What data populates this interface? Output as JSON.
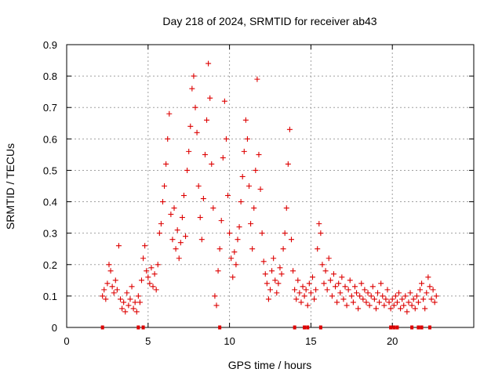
{
  "chart_data": {
    "type": "scatter",
    "title": "Day 218 of 2024, SRMTID for receiver ab43",
    "xlabel": "GPS time / hours",
    "ylabel": "SRMTID / TECUs",
    "xlim": [
      0,
      25
    ],
    "ylim": [
      0,
      0.9
    ],
    "xticks": [
      0,
      5,
      10,
      15,
      20
    ],
    "yticks": [
      0,
      0.1,
      0.2,
      0.3,
      0.4,
      0.5,
      0.6,
      0.7,
      0.8,
      0.9
    ],
    "grid": true,
    "marker": "plus",
    "color": "#dd0000",
    "series": [
      {
        "name": "SRMTID",
        "points": [
          [
            2.2,
            0.1
          ],
          [
            2.3,
            0.12
          ],
          [
            2.4,
            0.09
          ],
          [
            2.5,
            0.14
          ],
          [
            2.6,
            0.2
          ],
          [
            2.7,
            0.18
          ],
          [
            2.8,
            0.13
          ],
          [
            2.9,
            0.11
          ],
          [
            3.0,
            0.15
          ],
          [
            3.1,
            0.12
          ],
          [
            3.2,
            0.26
          ],
          [
            3.3,
            0.09
          ],
          [
            3.4,
            0.06
          ],
          [
            3.5,
            0.08
          ],
          [
            3.6,
            0.05
          ],
          [
            3.7,
            0.11
          ],
          [
            3.8,
            0.07
          ],
          [
            3.9,
            0.09
          ],
          [
            4.0,
            0.13
          ],
          [
            4.1,
            0.06
          ],
          [
            4.2,
            0.08
          ],
          [
            4.3,
            0.05
          ],
          [
            4.4,
            0.1
          ],
          [
            4.5,
            0.08
          ],
          [
            4.6,
            0.15
          ],
          [
            4.7,
            0.22
          ],
          [
            4.8,
            0.26
          ],
          [
            4.9,
            0.18
          ],
          [
            5.0,
            0.16
          ],
          [
            5.1,
            0.14
          ],
          [
            5.2,
            0.19
          ],
          [
            5.3,
            0.13
          ],
          [
            5.4,
            0.17
          ],
          [
            5.5,
            0.12
          ],
          [
            5.6,
            0.2
          ],
          [
            5.7,
            0.3
          ],
          [
            5.8,
            0.33
          ],
          [
            5.9,
            0.4
          ],
          [
            6.0,
            0.45
          ],
          [
            6.1,
            0.52
          ],
          [
            6.2,
            0.6
          ],
          [
            6.3,
            0.68
          ],
          [
            6.4,
            0.36
          ],
          [
            6.5,
            0.28
          ],
          [
            6.6,
            0.38
          ],
          [
            6.7,
            0.25
          ],
          [
            6.8,
            0.31
          ],
          [
            6.9,
            0.22
          ],
          [
            7.0,
            0.27
          ],
          [
            7.1,
            0.35
          ],
          [
            7.2,
            0.42
          ],
          [
            7.3,
            0.29
          ],
          [
            7.4,
            0.5
          ],
          [
            7.5,
            0.56
          ],
          [
            7.6,
            0.64
          ],
          [
            7.7,
            0.76
          ],
          [
            7.8,
            0.8
          ],
          [
            7.9,
            0.7
          ],
          [
            8.0,
            0.62
          ],
          [
            8.1,
            0.45
          ],
          [
            8.2,
            0.35
          ],
          [
            8.3,
            0.28
          ],
          [
            8.4,
            0.41
          ],
          [
            8.5,
            0.55
          ],
          [
            8.6,
            0.66
          ],
          [
            8.7,
            0.84
          ],
          [
            8.8,
            0.73
          ],
          [
            8.9,
            0.52
          ],
          [
            9.0,
            0.38
          ],
          [
            9.1,
            0.1
          ],
          [
            9.2,
            0.07
          ],
          [
            9.3,
            0.18
          ],
          [
            9.4,
            0.25
          ],
          [
            9.5,
            0.34
          ],
          [
            9.6,
            0.54
          ],
          [
            9.7,
            0.72
          ],
          [
            9.8,
            0.6
          ],
          [
            9.9,
            0.42
          ],
          [
            10.0,
            0.3
          ],
          [
            10.1,
            0.22
          ],
          [
            10.2,
            0.16
          ],
          [
            10.3,
            0.24
          ],
          [
            10.4,
            0.2
          ],
          [
            10.5,
            0.28
          ],
          [
            10.6,
            0.32
          ],
          [
            10.7,
            0.4
          ],
          [
            10.8,
            0.48
          ],
          [
            10.9,
            0.56
          ],
          [
            11.0,
            0.66
          ],
          [
            11.1,
            0.6
          ],
          [
            11.2,
            0.45
          ],
          [
            11.3,
            0.33
          ],
          [
            11.4,
            0.25
          ],
          [
            11.5,
            0.38
          ],
          [
            11.6,
            0.5
          ],
          [
            11.7,
            0.79
          ],
          [
            11.8,
            0.55
          ],
          [
            11.9,
            0.44
          ],
          [
            12.0,
            0.3
          ],
          [
            12.1,
            0.21
          ],
          [
            12.2,
            0.17
          ],
          [
            12.3,
            0.14
          ],
          [
            12.4,
            0.09
          ],
          [
            12.5,
            0.12
          ],
          [
            12.6,
            0.18
          ],
          [
            12.7,
            0.22
          ],
          [
            12.8,
            0.15
          ],
          [
            12.9,
            0.11
          ],
          [
            13.0,
            0.14
          ],
          [
            13.1,
            0.19
          ],
          [
            13.2,
            0.17
          ],
          [
            13.3,
            0.25
          ],
          [
            13.4,
            0.3
          ],
          [
            13.5,
            0.38
          ],
          [
            13.6,
            0.52
          ],
          [
            13.7,
            0.63
          ],
          [
            13.8,
            0.28
          ],
          [
            13.9,
            0.18
          ],
          [
            14.0,
            0.12
          ],
          [
            14.1,
            0.09
          ],
          [
            14.2,
            0.15
          ],
          [
            14.3,
            0.11
          ],
          [
            14.4,
            0.08
          ],
          [
            14.5,
            0.13
          ],
          [
            14.6,
            0.1
          ],
          [
            14.7,
            0.12
          ],
          [
            14.8,
            0.07
          ],
          [
            14.9,
            0.14
          ],
          [
            15.0,
            0.11
          ],
          [
            15.1,
            0.16
          ],
          [
            15.2,
            0.09
          ],
          [
            15.3,
            0.12
          ],
          [
            15.4,
            0.25
          ],
          [
            15.5,
            0.33
          ],
          [
            15.6,
            0.3
          ],
          [
            15.7,
            0.2
          ],
          [
            15.8,
            0.14
          ],
          [
            15.9,
            0.18
          ],
          [
            16.0,
            0.12
          ],
          [
            16.1,
            0.22
          ],
          [
            16.2,
            0.15
          ],
          [
            16.3,
            0.1
          ],
          [
            16.4,
            0.17
          ],
          [
            16.5,
            0.13
          ],
          [
            16.6,
            0.08
          ],
          [
            16.7,
            0.14
          ],
          [
            16.8,
            0.11
          ],
          [
            16.9,
            0.16
          ],
          [
            17.0,
            0.09
          ],
          [
            17.1,
            0.13
          ],
          [
            17.2,
            0.07
          ],
          [
            17.3,
            0.12
          ],
          [
            17.4,
            0.15
          ],
          [
            17.5,
            0.1
          ],
          [
            17.6,
            0.08
          ],
          [
            17.7,
            0.13
          ],
          [
            17.8,
            0.11
          ],
          [
            17.9,
            0.06
          ],
          [
            18.0,
            0.1
          ],
          [
            18.1,
            0.14
          ],
          [
            18.2,
            0.09
          ],
          [
            18.3,
            0.12
          ],
          [
            18.4,
            0.08
          ],
          [
            18.5,
            0.11
          ],
          [
            18.6,
            0.07
          ],
          [
            18.7,
            0.1
          ],
          [
            18.8,
            0.13
          ],
          [
            18.9,
            0.09
          ],
          [
            19.0,
            0.06
          ],
          [
            19.1,
            0.11
          ],
          [
            19.2,
            0.08
          ],
          [
            19.3,
            0.14
          ],
          [
            19.4,
            0.1
          ],
          [
            19.5,
            0.07
          ],
          [
            19.6,
            0.09
          ],
          [
            19.7,
            0.12
          ],
          [
            19.8,
            0.08
          ],
          [
            19.9,
            0.06
          ],
          [
            20.0,
            0.09
          ],
          [
            20.1,
            0.07
          ],
          [
            20.2,
            0.1
          ],
          [
            20.3,
            0.08
          ],
          [
            20.4,
            0.11
          ],
          [
            20.5,
            0.06
          ],
          [
            20.6,
            0.09
          ],
          [
            20.7,
            0.07
          ],
          [
            20.8,
            0.1
          ],
          [
            20.9,
            0.05
          ],
          [
            21.0,
            0.08
          ],
          [
            21.1,
            0.11
          ],
          [
            21.2,
            0.07
          ],
          [
            21.3,
            0.09
          ],
          [
            21.4,
            0.06
          ],
          [
            21.5,
            0.1
          ],
          [
            21.6,
            0.08
          ],
          [
            21.7,
            0.12
          ],
          [
            21.8,
            0.14
          ],
          [
            21.9,
            0.09
          ],
          [
            22.0,
            0.06
          ],
          [
            22.1,
            0.11
          ],
          [
            22.2,
            0.16
          ],
          [
            22.3,
            0.13
          ],
          [
            22.4,
            0.09
          ],
          [
            22.5,
            0.12
          ],
          [
            22.6,
            0.08
          ],
          [
            22.7,
            0.1
          ]
        ]
      }
    ],
    "zero_points_x": [
      2.2,
      4.4,
      4.7,
      9.4,
      14.0,
      14.6,
      14.8,
      15.6,
      19.9,
      20.1,
      20.3,
      21.2,
      21.6,
      21.8,
      22.3
    ]
  }
}
